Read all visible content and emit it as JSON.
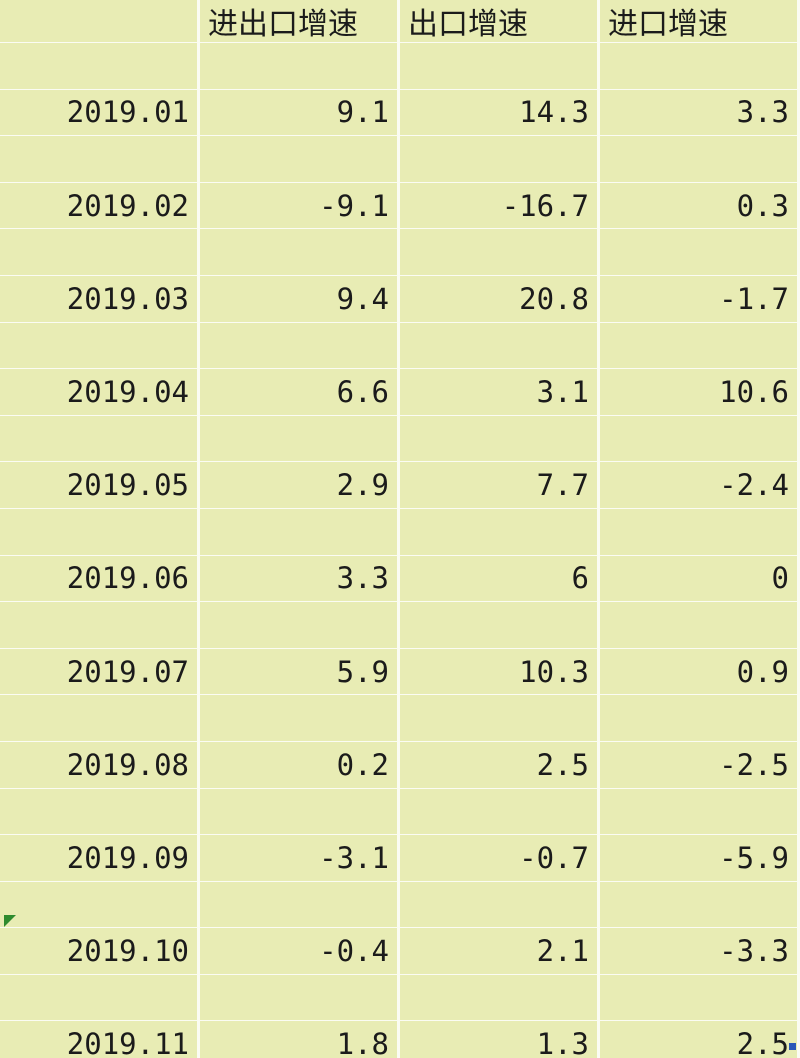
{
  "table": {
    "headers": [
      "",
      "进出口增速",
      "出口增速",
      "进口增速"
    ],
    "rows": [
      {
        "date": "2019.01",
        "total": "9.1",
        "export": "14.3",
        "import": "3.3"
      },
      {
        "date": "2019.02",
        "total": "-9.1",
        "export": "-16.7",
        "import": "0.3"
      },
      {
        "date": "2019.03",
        "total": "9.4",
        "export": "20.8",
        "import": "-1.7"
      },
      {
        "date": "2019.04",
        "total": "6.6",
        "export": "3.1",
        "import": "10.6"
      },
      {
        "date": "2019.05",
        "total": "2.9",
        "export": "7.7",
        "import": "-2.4"
      },
      {
        "date": "2019.06",
        "total": "3.3",
        "export": "6",
        "import": "0"
      },
      {
        "date": "2019.07",
        "total": "5.9",
        "export": "10.3",
        "import": "0.9"
      },
      {
        "date": "2019.08",
        "total": "0.2",
        "export": "2.5",
        "import": "-2.5"
      },
      {
        "date": "2019.09",
        "total": "-3.1",
        "export": "-0.7",
        "import": "-5.9"
      },
      {
        "date": "2019.10",
        "total": "-0.4",
        "export": "2.1",
        "import": "-3.3"
      },
      {
        "date": "2019.11",
        "total": "1.8",
        "export": "1.3",
        "import": "2.5"
      }
    ]
  },
  "colors": {
    "cell_fill": "#e8ecb4",
    "gridline": "#fbfcf3",
    "comment_marker": "#2e8b2e",
    "fill_handle": "#2b57b8"
  }
}
